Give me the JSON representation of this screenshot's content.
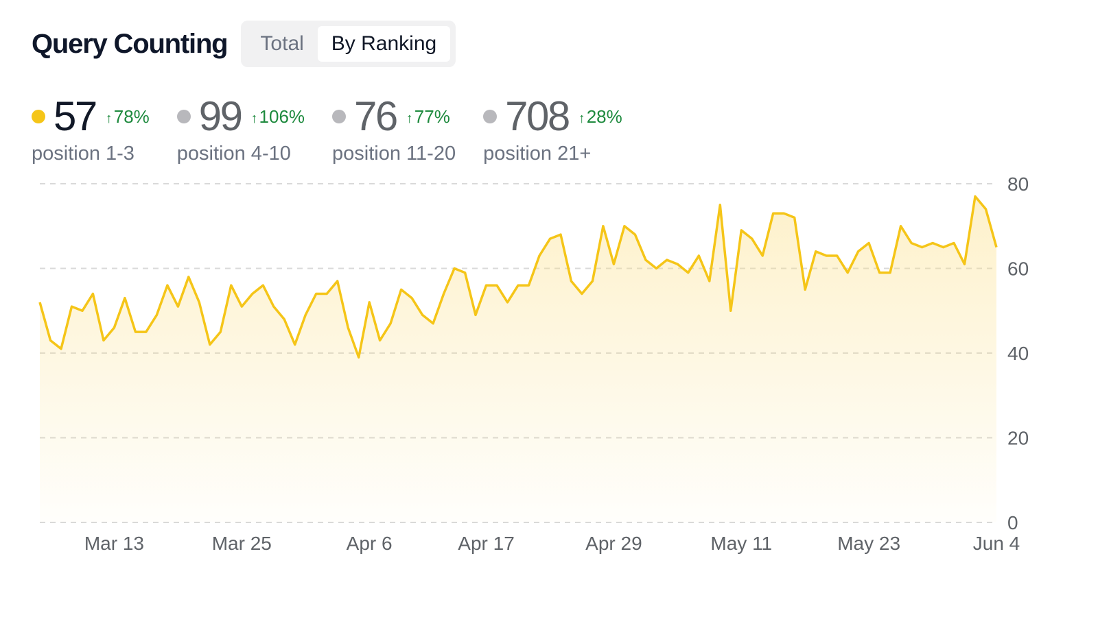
{
  "header": {
    "title": "Query Counting",
    "tabs": [
      {
        "label": "Total",
        "active": false
      },
      {
        "label": "By Ranking",
        "active": true
      }
    ]
  },
  "stats": [
    {
      "value": "57",
      "change": "78%",
      "label": "position 1-3",
      "dot_color": "#f5c518",
      "value_color": "#111827"
    },
    {
      "value": "99",
      "change": "106%",
      "label": "position 4-10",
      "dot_color": "#b8b8bc",
      "value_color": "#5f6368"
    },
    {
      "value": "76",
      "change": "77%",
      "label": "position 11-20",
      "dot_color": "#b8b8bc",
      "value_color": "#5f6368"
    },
    {
      "value": "708",
      "change": "28%",
      "label": "position 21+",
      "dot_color": "#b8b8bc",
      "value_color": "#5f6368"
    }
  ],
  "colors": {
    "line": "#f5c518",
    "change_up": "#1e8a3e",
    "grid": "#d9d9d9"
  },
  "chart_data": {
    "type": "area",
    "series": [
      {
        "values": [
          52,
          43,
          41,
          51,
          50,
          54,
          43,
          46,
          53,
          45,
          45,
          49,
          56,
          51,
          58,
          52,
          42,
          45,
          56,
          51,
          54,
          56,
          51,
          48,
          42,
          49,
          54,
          54,
          57,
          46,
          39,
          52,
          43,
          47,
          55,
          53,
          49,
          47,
          54,
          60,
          59,
          49,
          56,
          56,
          52,
          56,
          56,
          63,
          67,
          68,
          57,
          54,
          57,
          70,
          61,
          70,
          68,
          62,
          60,
          62,
          61,
          59,
          63,
          57,
          75,
          50,
          69,
          67,
          63,
          73,
          73,
          72,
          55,
          64,
          63,
          63,
          59,
          64,
          66,
          59,
          59,
          70,
          66,
          65,
          66,
          65,
          66,
          61,
          77,
          74,
          65
        ]
      }
    ],
    "x_start": "2025-03-06",
    "x_end": "2025-06-04",
    "x_ticks": [
      "Mar 13",
      "Mar 25",
      "Apr 6",
      "Apr 17",
      "Apr 29",
      "May 11",
      "May 23",
      "Jun 4"
    ],
    "y_ticks": [
      "0",
      "20",
      "40",
      "60",
      "80"
    ],
    "ylim": [
      0,
      80
    ],
    "grid": true,
    "title": "",
    "xlabel": "",
    "ylabel": ""
  }
}
